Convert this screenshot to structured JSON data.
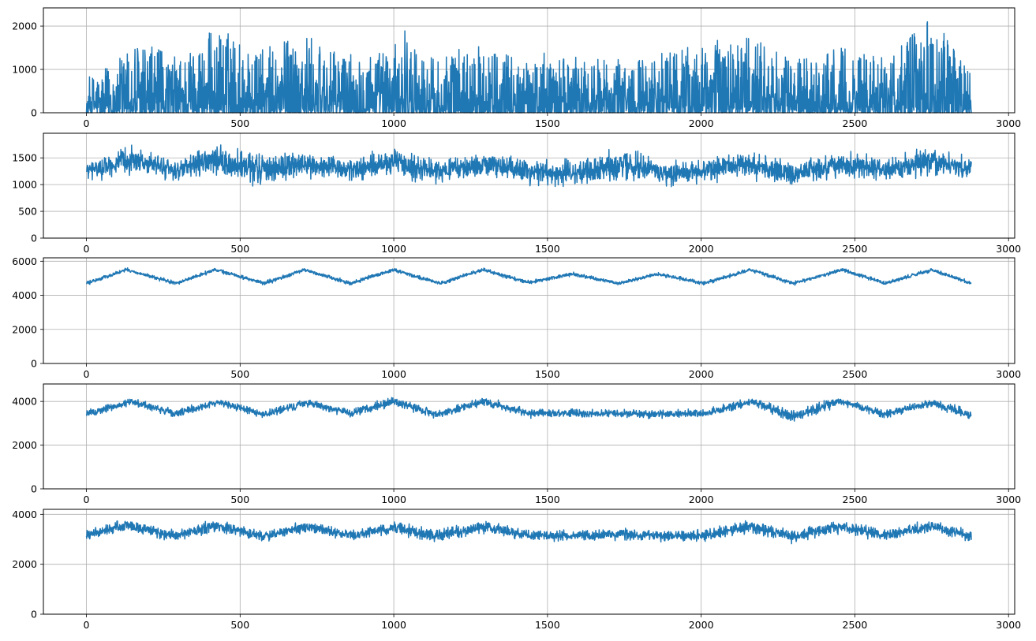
{
  "figure": {
    "background": "#ffffff",
    "line_color": "#1f77b4",
    "grid_color": "#b0b0b0"
  },
  "chart_data": [
    {
      "type": "line",
      "title": "",
      "xlabel": "",
      "ylabel": "",
      "xlim": [
        -140,
        3020
      ],
      "ylim": [
        0,
        2420
      ],
      "xticks": [
        0,
        500,
        1000,
        1500,
        2000,
        2500,
        3000
      ],
      "yticks": [
        0,
        1000,
        2000
      ],
      "grid": true,
      "legend": "none",
      "color": "#1f77b4",
      "n_points": 2880,
      "x_range": [
        0,
        2879
      ],
      "value_range": [
        0,
        2200
      ],
      "envelope": {
        "x": [
          0,
          100,
          150,
          300,
          400,
          450,
          550,
          700,
          800,
          1000,
          1030,
          1100,
          1300,
          1400,
          1500,
          1700,
          1800,
          2000,
          2150,
          2300,
          2450,
          2600,
          2750,
          2800,
          2880
        ],
        "min": [
          0,
          0,
          0,
          0,
          0,
          0,
          0,
          0,
          0,
          0,
          0,
          0,
          0,
          0,
          0,
          0,
          0,
          0,
          0,
          0,
          0,
          0,
          0,
          0,
          0
        ],
        "max": [
          800,
          1200,
          1700,
          1300,
          1900,
          1950,
          1400,
          1900,
          1400,
          1500,
          2050,
          1300,
          1600,
          1300,
          1400,
          1200,
          1300,
          1600,
          1800,
          1200,
          1500,
          1300,
          2200,
          1900,
          900
        ]
      }
    },
    {
      "type": "line",
      "title": "",
      "xlabel": "",
      "ylabel": "",
      "xlim": [
        -140,
        3020
      ],
      "ylim": [
        0,
        1960
      ],
      "xticks": [
        0,
        500,
        1000,
        1500,
        2000,
        2500,
        3000
      ],
      "yticks": [
        0,
        500,
        1000,
        1500
      ],
      "grid": true,
      "legend": "none",
      "color": "#1f77b4",
      "n_points": 2880,
      "x_range": [
        0,
        2879
      ],
      "value_range": [
        820,
        1800
      ],
      "envelope": {
        "x": [
          0,
          150,
          300,
          400,
          550,
          700,
          850,
          1000,
          1150,
          1300,
          1450,
          1600,
          1750,
          1900,
          2050,
          2150,
          2300,
          2450,
          2600,
          2750,
          2880
        ],
        "min": [
          1000,
          1150,
          1000,
          1100,
          850,
          1050,
          1000,
          1050,
          1000,
          1050,
          950,
          850,
          1000,
          900,
          1000,
          1050,
          900,
          1050,
          1000,
          1100,
          1000
        ],
        "max": [
          1500,
          1780,
          1500,
          1800,
          1700,
          1700,
          1550,
          1750,
          1500,
          1700,
          1550,
          1550,
          1780,
          1500,
          1600,
          1700,
          1500,
          1700,
          1550,
          1780,
          1580
        ]
      }
    },
    {
      "type": "line",
      "title": "",
      "xlabel": "",
      "ylabel": "",
      "xlim": [
        -140,
        3020
      ],
      "ylim": [
        0,
        6200
      ],
      "xticks": [
        0,
        500,
        1000,
        1500,
        2000,
        2500,
        3000
      ],
      "yticks": [
        0,
        2000,
        4000,
        6000
      ],
      "grid": true,
      "legend": "none",
      "color": "#1f77b4",
      "n_points": 2880,
      "x_range": [
        0,
        2879
      ],
      "value_range": [
        4550,
        5650
      ],
      "envelope": {
        "x": [
          0,
          130,
          290,
          420,
          580,
          710,
          860,
          1000,
          1150,
          1290,
          1440,
          1580,
          1730,
          1860,
          2010,
          2160,
          2300,
          2460,
          2600,
          2750,
          2880
        ],
        "min": [
          4550,
          5350,
          4550,
          5350,
          4550,
          5350,
          4550,
          5350,
          4550,
          5350,
          4600,
          5100,
          4550,
          5100,
          4550,
          5350,
          4550,
          5350,
          4550,
          5350,
          4550
        ],
        "max": [
          4850,
          5650,
          4850,
          5650,
          4850,
          5650,
          4850,
          5650,
          4850,
          5650,
          4900,
          5400,
          4850,
          5400,
          4850,
          5650,
          4850,
          5650,
          4850,
          5650,
          4850
        ]
      }
    },
    {
      "type": "line",
      "title": "",
      "xlabel": "",
      "ylabel": "",
      "xlim": [
        -140,
        3020
      ],
      "ylim": [
        0,
        4800
      ],
      "xticks": [
        0,
        500,
        1000,
        1500,
        2000,
        2500,
        3000
      ],
      "yticks": [
        0,
        2000,
        4000
      ],
      "grid": true,
      "legend": "none",
      "color": "#1f77b4",
      "n_points": 2880,
      "x_range": [
        0,
        2879
      ],
      "value_range": [
        2950,
        4300
      ],
      "envelope": {
        "x": [
          0,
          150,
          290,
          430,
          580,
          720,
          860,
          1000,
          1140,
          1290,
          1440,
          1600,
          1760,
          1900,
          2020,
          2160,
          2300,
          2450,
          2600,
          2750,
          2880
        ],
        "min": [
          3150,
          3750,
          3150,
          3750,
          3150,
          3700,
          3200,
          3700,
          3150,
          3700,
          3200,
          3200,
          3200,
          3200,
          3200,
          3750,
          2950,
          3750,
          3150,
          3700,
          3050
        ],
        "max": [
          3700,
          4250,
          3700,
          4200,
          3650,
          4200,
          3700,
          4300,
          3650,
          4300,
          3700,
          3700,
          3700,
          3700,
          3700,
          4250,
          3650,
          4300,
          3650,
          4200,
          3650
        ]
      }
    },
    {
      "type": "line",
      "title": "",
      "xlabel": "",
      "ylabel": "",
      "xlim": [
        -140,
        3020
      ],
      "ylim": [
        0,
        4200
      ],
      "xticks": [
        0,
        500,
        1000,
        1500,
        2000,
        2500,
        3000
      ],
      "yticks": [
        0,
        2000,
        4000
      ],
      "grid": true,
      "legend": "none",
      "color": "#1f77b4",
      "n_points": 2880,
      "x_range": [
        0,
        2879
      ],
      "value_range": [
        2750,
        3900
      ],
      "envelope": {
        "x": [
          0,
          130,
          290,
          420,
          580,
          720,
          860,
          1000,
          1150,
          1290,
          1440,
          1580,
          1730,
          1870,
          2010,
          2160,
          2300,
          2450,
          2600,
          2750,
          2880
        ],
        "min": [
          2850,
          3250,
          2850,
          3150,
          2850,
          3200,
          2900,
          3150,
          2800,
          3150,
          2850,
          2850,
          2900,
          2850,
          2850,
          3150,
          2800,
          3150,
          2850,
          3200,
          2750
        ],
        "max": [
          3450,
          3900,
          3400,
          3900,
          3400,
          3800,
          3400,
          3800,
          3450,
          3850,
          3450,
          3450,
          3500,
          3450,
          3450,
          3900,
          3450,
          3850,
          3450,
          3850,
          3450
        ]
      }
    }
  ]
}
